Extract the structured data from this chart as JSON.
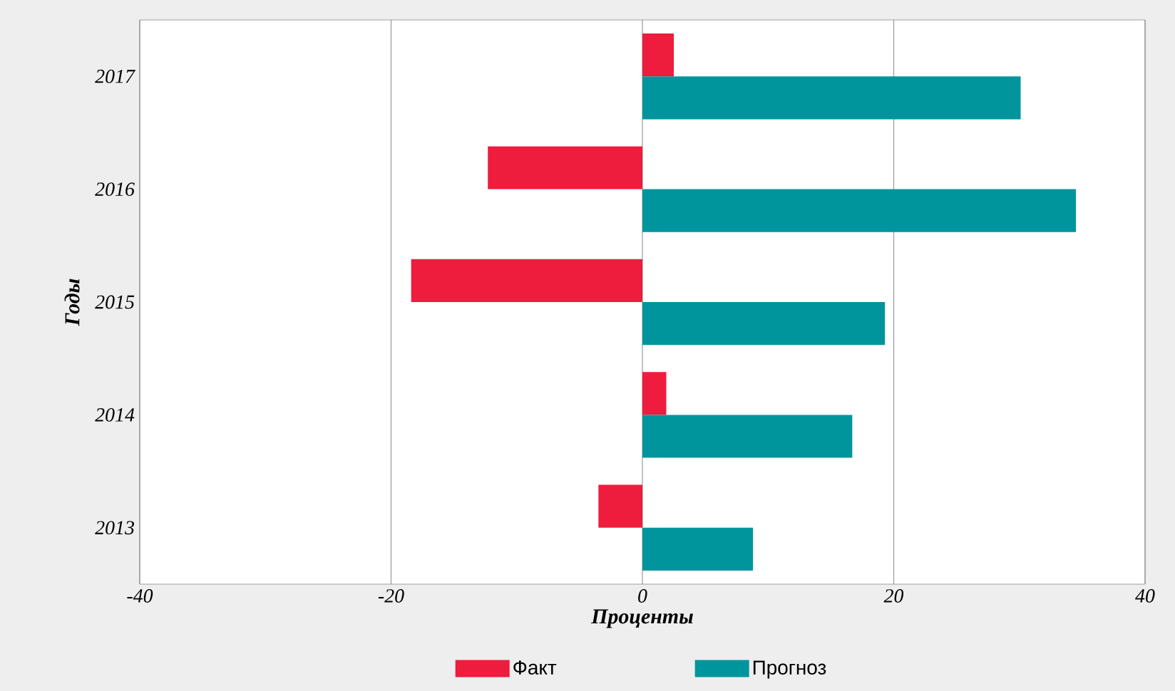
{
  "chart_data": {
    "type": "bar",
    "orientation": "horizontal",
    "xlabel": "Проценты",
    "ylabel": "Годы",
    "categories": [
      "2017",
      "2016",
      "2015",
      "2014",
      "2013"
    ],
    "series": [
      {
        "name": "Факт",
        "color": "#ee1c3d",
        "values": [
          2.5,
          -12.3,
          -18.4,
          1.9,
          -3.5
        ]
      },
      {
        "name": "Прогноз",
        "color": "#00959c",
        "values": [
          30.1,
          34.5,
          19.3,
          16.7,
          8.8
        ]
      }
    ],
    "xlim": [
      -40,
      40
    ],
    "xticks": [
      -40,
      -20,
      0,
      20,
      40
    ],
    "grid": "x",
    "legend": "bottom"
  }
}
